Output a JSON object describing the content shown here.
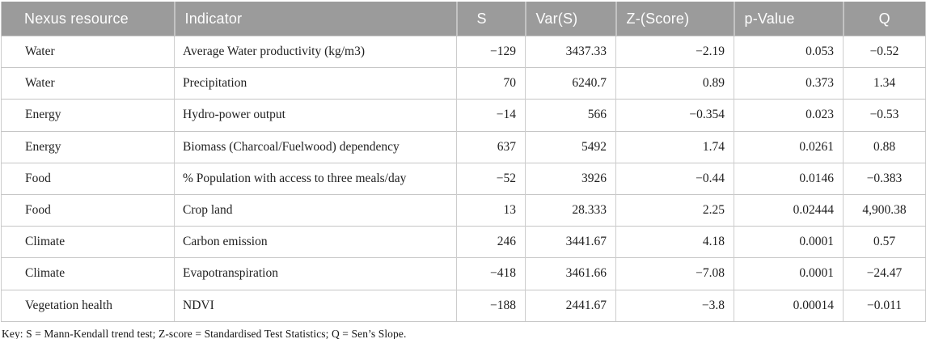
{
  "table": {
    "columns": [
      {
        "key": "resource",
        "label": "Nexus resource"
      },
      {
        "key": "indicator",
        "label": "Indicator"
      },
      {
        "key": "s",
        "label": "S"
      },
      {
        "key": "var",
        "label": "Var(S)"
      },
      {
        "key": "z",
        "label": "Z-(Score)"
      },
      {
        "key": "p",
        "label": "p-Value"
      },
      {
        "key": "q",
        "label": "Q"
      }
    ],
    "rows": [
      [
        "Water",
        "Average Water productivity (kg/m3)",
        "−129",
        "3437.33",
        "−2.19",
        "0.053",
        "−0.52"
      ],
      [
        "Water",
        "Precipitation",
        "70",
        "6240.7",
        "0.89",
        "0.373",
        "1.34"
      ],
      [
        "Energy",
        "Hydro-power output",
        "−14",
        "566",
        "−0.354",
        "0.023",
        "−0.53"
      ],
      [
        "Energy",
        "Biomass (Charcoal/Fuelwood) dependency",
        "637",
        "5492",
        "1.74",
        "0.0261",
        "0.88"
      ],
      [
        "Food",
        "% Population with access to three meals/day",
        "−52",
        "3926",
        "−0.44",
        "0.0146",
        "−0.383"
      ],
      [
        "Food",
        "Crop land",
        "13",
        "28.333",
        "2.25",
        "0.02444",
        "4,900.38"
      ],
      [
        "Climate",
        "Carbon emission",
        "246",
        "3441.67",
        "4.18",
        "0.0001",
        "0.57"
      ],
      [
        "Climate",
        "Evapotranspiration",
        "−418",
        "3461.66",
        "−7.08",
        "0.0001",
        "−24.47"
      ],
      [
        "Vegetation health",
        "NDVI",
        "−188",
        "2441.67",
        "−3.8",
        "0.00014",
        "−0.011"
      ]
    ]
  },
  "footnote": "Key: S = Mann-Kendall trend test; Z-score = Standardised Test Statistics; Q = Sen’s Slope.",
  "colors": {
    "header_bg": "#9b9b9b",
    "header_text": "#fdfdfd",
    "body_text": "#1f1f1f",
    "row_border": "#c6c6c6",
    "column_border": "#cdcdcd"
  }
}
